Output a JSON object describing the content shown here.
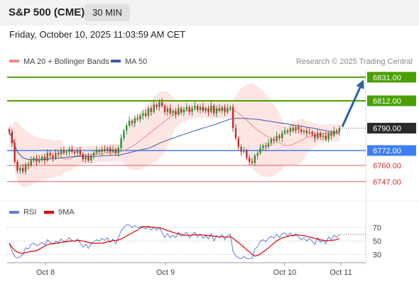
{
  "header": {
    "title": "S&P 500 (CME)",
    "timeframe": "30 MIN"
  },
  "timestamp": "Friday, October 10, 2025 11:03:59 AM CET",
  "legend": {
    "ma20": {
      "label": "MA 20 + Bollinger Bands",
      "color": "#f28b82"
    },
    "ma50": {
      "label": "MA 50",
      "color": "#3b5ba5"
    },
    "credit": "Research © 2025 Trading Central"
  },
  "rsi_legend": {
    "rsi": {
      "label": "RSI",
      "color": "#5b7fd6"
    },
    "ma9": {
      "label": "9MA",
      "color": "#e00000"
    }
  },
  "colors": {
    "bull": "#2e8b2e",
    "bear": "#c62828",
    "resistance": "#4aa000",
    "pivot": "#3d7ff0",
    "support": "#e06060",
    "arrow": "#2d5fa8",
    "band": "#fde0de"
  },
  "chart_data": [
    {
      "type": "candlestick",
      "x_ticks": [
        "Oct 8",
        "Oct 9",
        "Oct 10",
        "Oct 11"
      ],
      "ylim": [
        6740,
        6836
      ],
      "current_price": "6790.00",
      "levels": [
        {
          "value": 6831,
          "label": "6831.00",
          "kind": "resistance"
        },
        {
          "value": 6812,
          "label": "6812.00",
          "kind": "resistance"
        },
        {
          "value": 6772,
          "label": "6772.00",
          "kind": "pivot"
        },
        {
          "value": 6760,
          "label": "6760.00",
          "kind": "support"
        },
        {
          "value": 6747,
          "label": "6747.00",
          "kind": "support"
        }
      ],
      "close": [
        6787,
        6778,
        6763,
        6756,
        6758,
        6755,
        6761,
        6760,
        6764,
        6766,
        6763,
        6765,
        6767,
        6764,
        6770,
        6768,
        6766,
        6770,
        6769,
        6772,
        6770,
        6771,
        6773,
        6771,
        6770,
        6772,
        6769,
        6765,
        6767,
        6764,
        6768,
        6770,
        6772,
        6771,
        6773,
        6772,
        6774,
        6771,
        6773,
        6770,
        6774,
        6782,
        6788,
        6792,
        6796,
        6794,
        6798,
        6797,
        6800,
        6802,
        6800,
        6806,
        6803,
        6809,
        6807,
        6811,
        6808,
        6803,
        6806,
        6802,
        6804,
        6801,
        6806,
        6803,
        6805,
        6807,
        6803,
        6806,
        6808,
        6805,
        6807,
        6804,
        6806,
        6803,
        6808,
        6802,
        6806,
        6804,
        6807,
        6803,
        6806,
        6807,
        6790,
        6782,
        6775,
        6771,
        6772,
        6766,
        6763,
        6762,
        6768,
        6770,
        6774,
        6776,
        6775,
        6778,
        6781,
        6780,
        6784,
        6782,
        6786,
        6788,
        6787,
        6790,
        6788,
        6791,
        6789,
        6787,
        6788,
        6786,
        6787,
        6785,
        6782,
        6786,
        6783,
        6784,
        6781,
        6786,
        6784,
        6788,
        6787,
        6790
      ],
      "arrow_target": 6829,
      "rsi": {
        "ylim": [
          20,
          80
        ],
        "ticks": [
          "70",
          "50",
          "30"
        ],
        "tick_values": [
          70,
          50,
          30
        ],
        "values": [
          47,
          35,
          27,
          25,
          27,
          30,
          40,
          38,
          45,
          47,
          43,
          45,
          48,
          44,
          52,
          48,
          45,
          50,
          48,
          53,
          49,
          51,
          55,
          51,
          49,
          53,
          47,
          41,
          45,
          39,
          46,
          49,
          52,
          50,
          54,
          51,
          55,
          48,
          53,
          46,
          55,
          65,
          70,
          74,
          74,
          70,
          73,
          70,
          71,
          72,
          68,
          72,
          66,
          71,
          66,
          70,
          63,
          55,
          61,
          55,
          59,
          55,
          63,
          57,
          60,
          63,
          55,
          60,
          63,
          56,
          60,
          54,
          58,
          53,
          61,
          50,
          58,
          55,
          60,
          52,
          58,
          60,
          35,
          28,
          25,
          24,
          27,
          24,
          24,
          25,
          38,
          42,
          50,
          52,
          49,
          54,
          57,
          54,
          60,
          55,
          61,
          62,
          58,
          62,
          57,
          61,
          56,
          52,
          55,
          50,
          54,
          50,
          45,
          55,
          48,
          52,
          46,
          56,
          52,
          59,
          55,
          60
        ]
      }
    }
  ]
}
